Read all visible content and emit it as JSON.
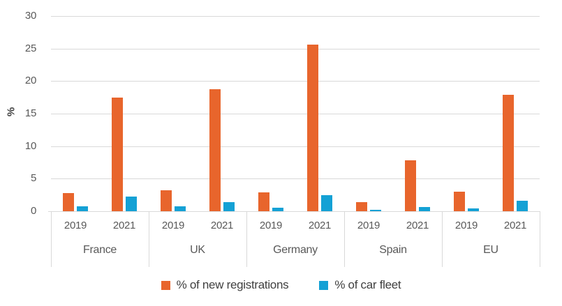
{
  "chart_data": {
    "type": "bar",
    "title": "",
    "ylabel": "%",
    "ylim": [
      0,
      30
    ],
    "yticks": [
      0,
      5,
      10,
      15,
      20,
      25,
      30
    ],
    "grid": true,
    "legend_position": "bottom",
    "groups": [
      {
        "label": "France",
        "years": [
          "2019",
          "2021"
        ]
      },
      {
        "label": "UK",
        "years": [
          "2019",
          "2021"
        ]
      },
      {
        "label": "Germany",
        "years": [
          "2019",
          "2021"
        ]
      },
      {
        "label": "Spain",
        "years": [
          "2019",
          "2021"
        ]
      },
      {
        "label": "EU",
        "years": [
          "2019",
          "2021"
        ]
      }
    ],
    "series": [
      {
        "name": "% of new registrations",
        "color": "#E8652C",
        "values": [
          [
            2.8,
            17.5
          ],
          [
            3.2,
            18.8
          ],
          [
            2.9,
            25.6
          ],
          [
            1.4,
            7.8
          ],
          [
            3.0,
            17.9
          ]
        ]
      },
      {
        "name": "% of car fleet",
        "color": "#14A1D5",
        "values": [
          [
            0.7,
            2.2
          ],
          [
            0.8,
            1.4
          ],
          [
            0.5,
            2.5
          ],
          [
            0.2,
            0.6
          ],
          [
            0.4,
            1.6
          ]
        ]
      }
    ]
  }
}
